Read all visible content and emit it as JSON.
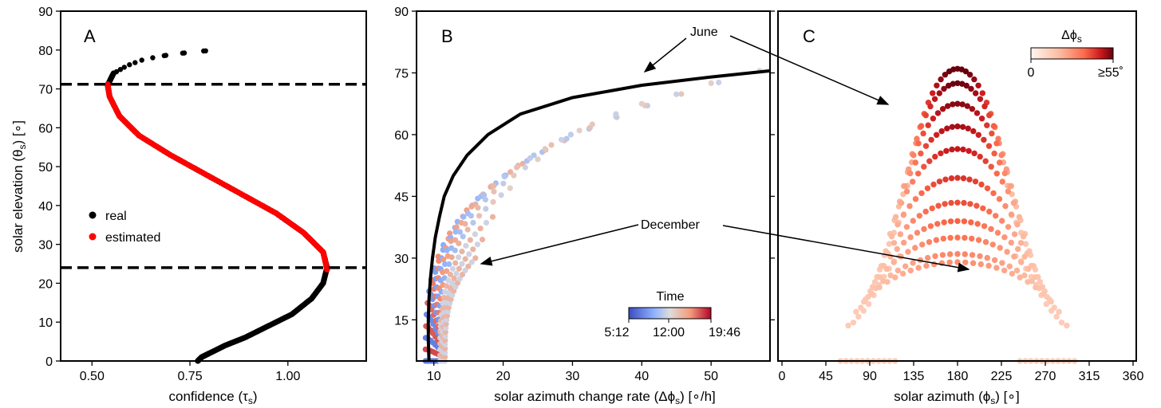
{
  "chart_data": [
    {
      "panel": "A",
      "type": "scatter",
      "xlabel": "confidence (τ_s)",
      "ylabel": "solar elevation (θ_s) [∘]",
      "xlim": [
        0.42,
        1.2
      ],
      "ylim": [
        0,
        90
      ],
      "xticks": [
        "0.50",
        "0.75",
        "1.00"
      ],
      "xtick_values": [
        0.5,
        0.75,
        1.0
      ],
      "yticks": [
        "0",
        "10",
        "20",
        "30",
        "40",
        "50",
        "60",
        "70",
        "80",
        "90"
      ],
      "ytick_values": [
        0,
        10,
        20,
        30,
        40,
        50,
        60,
        70,
        80,
        90
      ],
      "hlines": [
        71.2,
        24.0
      ],
      "series": [
        {
          "name": "real",
          "color": "#000000",
          "curve": [
            [
              0.77,
              0
            ],
            [
              0.78,
              1
            ],
            [
              0.8,
              2
            ],
            [
              0.84,
              4
            ],
            [
              0.89,
              6
            ],
            [
              0.95,
              9
            ],
            [
              1.01,
              12
            ],
            [
              1.06,
              16
            ],
            [
              1.09,
              20
            ],
            [
              1.1,
              24
            ],
            [
              1.09,
              28
            ],
            [
              1.04,
              33
            ],
            [
              0.97,
              38
            ],
            [
              0.88,
              43
            ],
            [
              0.79,
              48
            ],
            [
              0.7,
              53
            ],
            [
              0.62,
              58
            ],
            [
              0.57,
              63
            ],
            [
              0.545,
              68
            ],
            [
              0.54,
              71
            ],
            [
              0.555,
              74
            ],
            [
              0.59,
              76
            ],
            [
              0.63,
              77.5
            ],
            [
              0.68,
              78.5
            ],
            [
              0.74,
              79.3
            ],
            [
              0.81,
              80
            ]
          ]
        },
        {
          "name": "estimated",
          "color": "#ff0000",
          "curve": [
            [
              1.1,
              23.5
            ],
            [
              1.09,
              28
            ],
            [
              1.04,
              33
            ],
            [
              0.97,
              38
            ],
            [
              0.88,
              43
            ],
            [
              0.79,
              48
            ],
            [
              0.7,
              53
            ],
            [
              0.62,
              58
            ],
            [
              0.57,
              63
            ],
            [
              0.545,
              68
            ],
            [
              0.54,
              71.2
            ]
          ]
        }
      ],
      "legend": {
        "position": "center-left",
        "entries": [
          {
            "label": "real",
            "color": "#000000"
          },
          {
            "label": "estimated",
            "color": "#ff0000"
          }
        ]
      }
    },
    {
      "panel": "B",
      "type": "scatter",
      "xlabel": "solar azimuth change rate (Δϕ_s) [∘/h]",
      "xlim": [
        7.5,
        58.5
      ],
      "ylim": [
        5,
        90
      ],
      "xticks": [
        "10",
        "20",
        "30",
        "40",
        "50"
      ],
      "xtick_values": [
        10,
        20,
        30,
        40,
        50
      ],
      "yticks": [
        "15",
        "30",
        "45",
        "60",
        "75",
        "90"
      ],
      "ytick_values": [
        15,
        30,
        45,
        60,
        75,
        90
      ],
      "months_max_elevation": [
        75.5,
        72.5,
        67.5,
        61,
        54,
        47,
        40,
        34.5,
        30
      ],
      "months_max_rate": [
        57,
        50,
        40,
        31,
        25,
        21,
        18.5,
        17,
        16
      ],
      "fit_curve": [
        [
          9.3,
          5
        ],
        [
          9.2,
          10
        ],
        [
          9.2,
          15
        ],
        [
          9.3,
          20
        ],
        [
          9.5,
          25
        ],
        [
          9.8,
          30
        ],
        [
          10.2,
          35
        ],
        [
          10.8,
          40
        ],
        [
          11.5,
          45
        ],
        [
          12.8,
          50
        ],
        [
          14.8,
          55
        ],
        [
          17.8,
          60
        ],
        [
          22.5,
          65
        ],
        [
          30,
          69
        ],
        [
          40,
          72
        ],
        [
          50,
          74
        ],
        [
          58.5,
          75.5
        ]
      ],
      "colorbar": {
        "title": "Time",
        "min_label": "5:12",
        "mid_label": "12:00",
        "max_label": "19:46",
        "colors": [
          "#3b4cc0",
          "#8db0fe",
          "#dddcdc",
          "#f49a7b",
          "#b40426"
        ]
      },
      "annotations": [
        {
          "text": "June"
        },
        {
          "text": "December"
        }
      ]
    },
    {
      "panel": "C",
      "type": "scatter",
      "xlabel": "solar azimuth (ϕ_s) [∘]",
      "xlim": [
        0,
        360
      ],
      "ylim": [
        5,
        90
      ],
      "xticks": [
        "0",
        "45",
        "90",
        "135",
        "180",
        "225",
        "270",
        "315",
        "360"
      ],
      "xtick_values": [
        0,
        45,
        90,
        135,
        180,
        225,
        270,
        315,
        360
      ],
      "arc_peaks": [
        76,
        72.5,
        67.5,
        62,
        56.5,
        49.5,
        43.5,
        39,
        35,
        31,
        29
      ],
      "colorbar": {
        "title": "Δϕ_s",
        "min_label": "0",
        "max_label": "≥55˚",
        "colors": [
          "#fff5f0",
          "#fcbba1",
          "#fb6a4a",
          "#cb181d",
          "#67000d"
        ]
      }
    }
  ],
  "labels": {
    "panel_a": "A",
    "panel_b": "B",
    "panel_c": "C",
    "ylabel_a": "solar elevation (θ",
    "ylabel_a_sub": "s",
    "ylabel_a_tail": ") [∘]",
    "xlabel_a": "confidence (τ",
    "xlabel_a_sub": "s",
    "xlabel_a_tail": ")",
    "xlabel_b": "solar azimuth change rate (Δϕ",
    "xlabel_b_sub": "s",
    "xlabel_b_tail": ") [∘/h]",
    "xlabel_c": "solar azimuth (ϕ",
    "xlabel_c_sub": "s",
    "xlabel_c_tail": ") [∘]",
    "legend_real": "real",
    "legend_est": "estimated",
    "june": "June",
    "december": "December",
    "cb_time_title": "Time",
    "cb_time_min": "5:12",
    "cb_time_mid": "12:00",
    "cb_time_max": "19:46",
    "cb_dphi_title": "Δϕ",
    "cb_dphi_sub": "s",
    "cb_dphi_min": "0",
    "cb_dphi_max": "≥55˚"
  }
}
